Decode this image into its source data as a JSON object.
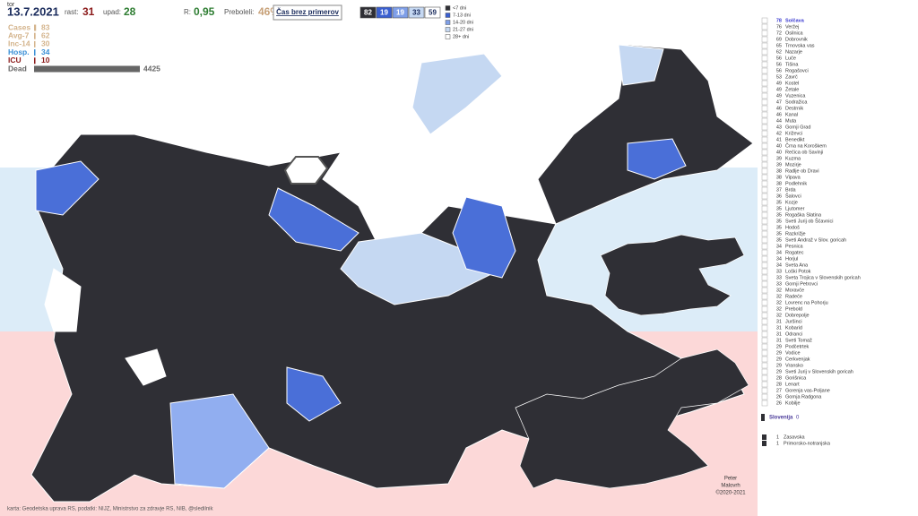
{
  "header": {
    "day": "tor",
    "date": "13.7.2021",
    "growth_label": "rast:",
    "growth": 31,
    "decline_label": "upad:",
    "decline": 28,
    "r_label": "R:",
    "r": "0,95",
    "recovered_label": "Preboleli:",
    "recovered": "46%",
    "button": "Čas brez primerov",
    "counts": [
      82,
      19,
      19,
      33,
      59
    ]
  },
  "legend": [
    "<7 dni",
    "7-13 dni",
    "14-20 dni",
    "21-27 dni",
    "28+ dni"
  ],
  "stats": [
    {
      "label": "Cases",
      "value": 83
    },
    {
      "label": "Avg-7",
      "value": 62
    },
    {
      "label": "Inc-14",
      "value": 30
    },
    {
      "label": "Hosp.",
      "value": 34
    },
    {
      "label": "ICU",
      "value": 10
    },
    {
      "label": "Dead",
      "value": 4425
    }
  ],
  "list": [
    [
      78,
      "Solčava"
    ],
    [
      76,
      "Veržej"
    ],
    [
      72,
      "Osilnica"
    ],
    [
      69,
      "Dobrovnik"
    ],
    [
      65,
      "Trnovska vas"
    ],
    [
      62,
      "Nazarje"
    ],
    [
      56,
      "Luče"
    ],
    [
      56,
      "Tišina"
    ],
    [
      56,
      "Rogašovci"
    ],
    [
      53,
      "Zavrč"
    ],
    [
      49,
      "Kostel"
    ],
    [
      49,
      "Žetale"
    ],
    [
      49,
      "Vuzenica"
    ],
    [
      47,
      "Sodražica"
    ],
    [
      46,
      "Destrnik"
    ],
    [
      46,
      "Kanal"
    ],
    [
      44,
      "Muta"
    ],
    [
      43,
      "Gornji Grad"
    ],
    [
      42,
      "Križevci"
    ],
    [
      41,
      "Benedikt"
    ],
    [
      40,
      "Črna na Koroškem"
    ],
    [
      40,
      "Rečica ob Savinji"
    ],
    [
      39,
      "Kuzma"
    ],
    [
      39,
      "Mozirje"
    ],
    [
      38,
      "Radlje ob Dravi"
    ],
    [
      38,
      "Vipava"
    ],
    [
      38,
      "Podlehnik"
    ],
    [
      37,
      "Brda"
    ],
    [
      36,
      "Šalovci"
    ],
    [
      35,
      "Kozje"
    ],
    [
      35,
      "Ljutomer"
    ],
    [
      35,
      "Rogaška Slatina"
    ],
    [
      35,
      "Sveti Jurij ob Ščavnici"
    ],
    [
      35,
      "Hodoš"
    ],
    [
      35,
      "Razkrižje"
    ],
    [
      35,
      "Sveti Andraž v Slov. goricah"
    ],
    [
      34,
      "Pesnica"
    ],
    [
      34,
      "Rogatec"
    ],
    [
      34,
      "Horjul"
    ],
    [
      34,
      "Sveta Ana"
    ],
    [
      33,
      "Loški Potok"
    ],
    [
      33,
      "Sveta Trojica v Slovenskih goricah"
    ],
    [
      33,
      "Gornji Petrovci"
    ],
    [
      32,
      "Moravče"
    ],
    [
      32,
      "Radeče"
    ],
    [
      32,
      "Lovrenc na Pohorju"
    ],
    [
      32,
      "Prebold"
    ],
    [
      32,
      "Dobrepolje"
    ],
    [
      31,
      "Juršinci"
    ],
    [
      31,
      "Kobarid"
    ],
    [
      31,
      "Odranci"
    ],
    [
      31,
      "Sveti Tomaž"
    ],
    [
      29,
      "Podčetrtek"
    ],
    [
      29,
      "Vodice"
    ],
    [
      29,
      "Cerkvenjak"
    ],
    [
      29,
      "Vransko"
    ],
    [
      29,
      "Sveti Jurij v Slovenskih goricah"
    ],
    [
      28,
      "Gorišnica"
    ],
    [
      28,
      "Lenart"
    ],
    [
      27,
      "Gorenja vas-Poljane"
    ],
    [
      26,
      "Gornja Radgona"
    ],
    [
      26,
      "Kobilje"
    ]
  ],
  "total": {
    "label": "Slovenija",
    "value": 0
  },
  "regions": [
    [
      1,
      "Zasavska"
    ],
    [
      1,
      "Primorsko-notranjska"
    ]
  ],
  "footer": {
    "source": "karta: Geodetska uprava RS, podatki: NIJZ, Ministrstvo za zdravje RS, NIB, @sledilnik",
    "author_first": "Peter",
    "author_last": "Malovrh",
    "copyright": "©2020-2021"
  }
}
